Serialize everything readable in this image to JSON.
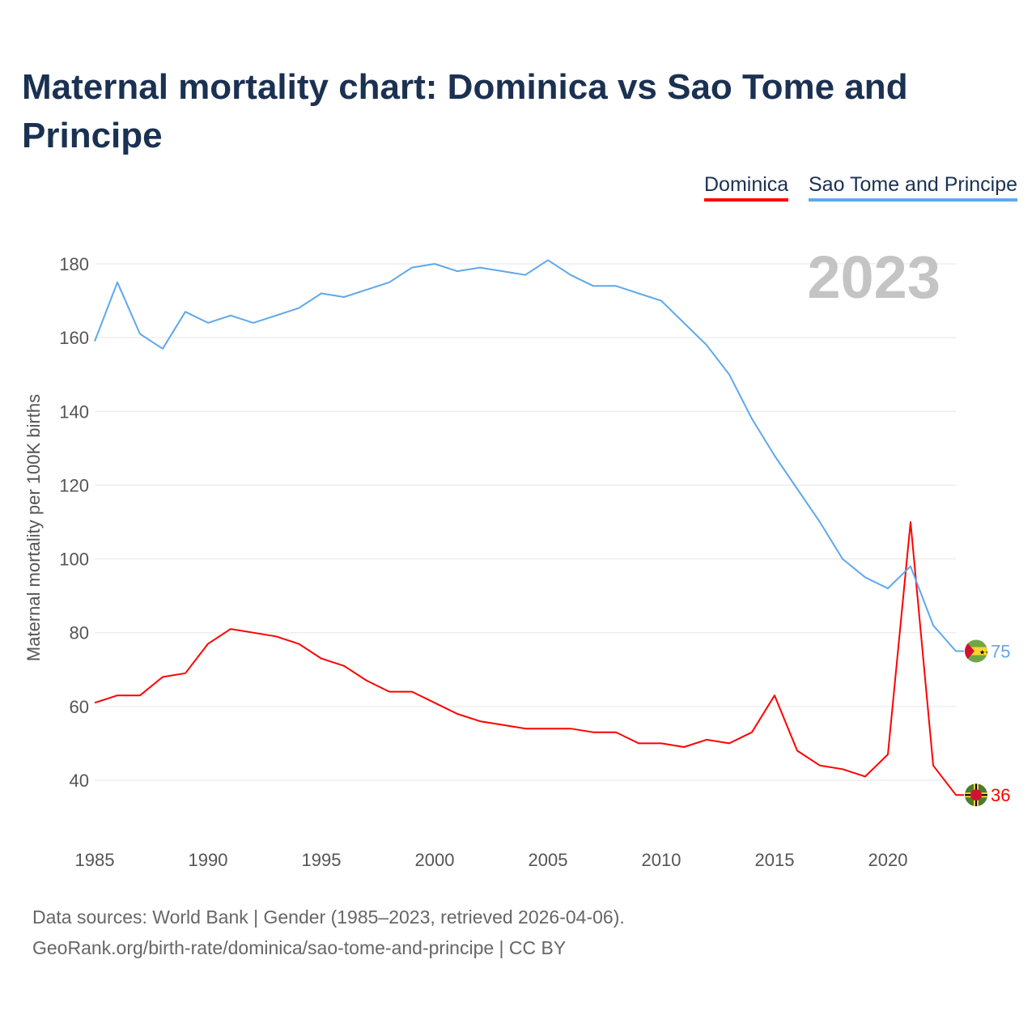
{
  "title": "Maternal mortality chart: Dominica vs Sao Tome and Principe",
  "footer": {
    "line1": "Data sources: World Bank | Gender (1985–2023, retrieved 2026-04-06).",
    "line2": "GeoRank.org/birth-rate/dominica/sao-tome-and-principe | CC BY"
  },
  "chart_data": {
    "type": "line",
    "title": "Maternal mortality chart: Dominica vs Sao Tome and Principe",
    "xlabel": "",
    "ylabel": "Maternal mortality per 100K births",
    "year_label": "2023",
    "xlim": [
      1985,
      2023
    ],
    "ylim": [
      30,
      190
    ],
    "xticks": [
      1985,
      1990,
      1995,
      2000,
      2005,
      2010,
      2015,
      2020
    ],
    "yticks": [
      40,
      60,
      80,
      100,
      120,
      140,
      160,
      180
    ],
    "grid": true,
    "legend_placement": "top-right",
    "x": [
      1985,
      1986,
      1987,
      1988,
      1989,
      1990,
      1991,
      1992,
      1993,
      1994,
      1995,
      1996,
      1997,
      1998,
      1999,
      2000,
      2001,
      2002,
      2003,
      2004,
      2005,
      2006,
      2007,
      2008,
      2009,
      2010,
      2011,
      2012,
      2013,
      2014,
      2015,
      2016,
      2017,
      2018,
      2019,
      2020,
      2021,
      2022,
      2023
    ],
    "series": [
      {
        "name": "Dominica",
        "color": "#ff0000",
        "end_label": "36",
        "flag": "dominica-flag",
        "values": [
          61,
          63,
          63,
          68,
          69,
          77,
          81,
          80,
          79,
          77,
          73,
          71,
          67,
          64,
          64,
          61,
          58,
          56,
          55,
          54,
          54,
          54,
          53,
          53,
          50,
          50,
          49,
          51,
          50,
          53,
          63,
          48,
          44,
          43,
          41,
          47,
          110,
          44,
          36
        ]
      },
      {
        "name": "Sao Tome and Principe",
        "color": "#5ea8ec",
        "end_label": "75",
        "flag": "sao-tome-flag",
        "values": [
          159,
          175,
          161,
          157,
          167,
          164,
          166,
          164,
          166,
          168,
          172,
          171,
          173,
          175,
          179,
          180,
          178,
          179,
          178,
          177,
          181,
          177,
          174,
          174,
          172,
          170,
          164,
          158,
          150,
          138,
          128,
          119,
          110,
          100,
          95,
          92,
          98,
          82,
          75
        ]
      }
    ]
  }
}
